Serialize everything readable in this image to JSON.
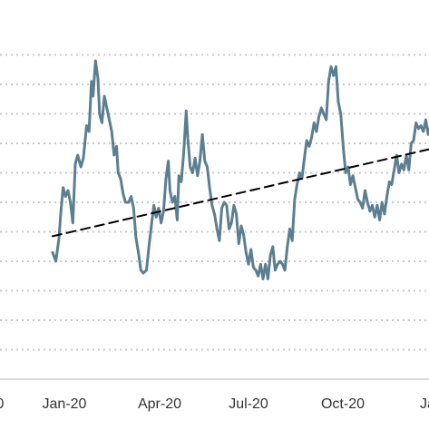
{
  "chart_data": {
    "type": "line",
    "title": "",
    "xlabel": "",
    "ylabel": "",
    "x_ticks": [
      "0",
      "Jan-20",
      "Apr-20",
      "Jul-20",
      "Oct-20",
      "Jan"
    ],
    "x_domain": [
      -65,
      465
    ],
    "y_domain": [
      0,
      12
    ],
    "grid": "horizontal dotted",
    "n_gridlines": 11,
    "series": [
      {
        "style": "solid",
        "color": "#5b7f91",
        "points": [
          [
            0,
            4.3
          ],
          [
            4,
            4.0
          ],
          [
            8,
            4.8
          ],
          [
            10,
            5.6
          ],
          [
            13,
            6.5
          ],
          [
            16,
            6.2
          ],
          [
            19,
            6.4
          ],
          [
            22,
            6.0
          ],
          [
            25,
            5.3
          ],
          [
            28,
            7.3
          ],
          [
            31,
            7.6
          ],
          [
            35,
            7.2
          ],
          [
            38,
            7.5
          ],
          [
            42,
            8.6
          ],
          [
            45,
            8.4
          ],
          [
            48,
            10.1
          ],
          [
            50,
            9.6
          ],
          [
            53,
            10.8
          ],
          [
            56,
            10.2
          ],
          [
            58,
            9.0
          ],
          [
            61,
            8.7
          ],
          [
            64,
            9.6
          ],
          [
            67,
            9.2
          ],
          [
            70,
            8.8
          ],
          [
            73,
            8.4
          ],
          [
            76,
            7.6
          ],
          [
            79,
            7.9
          ],
          [
            81,
            7.0
          ],
          [
            84,
            6.8
          ],
          [
            87,
            6.3
          ],
          [
            90,
            6.0
          ],
          [
            94,
            6.0
          ],
          [
            97,
            6.2
          ],
          [
            100,
            5.8
          ],
          [
            103,
            4.8
          ],
          [
            106,
            4.3
          ],
          [
            109,
            3.7
          ],
          [
            112,
            3.6
          ],
          [
            116,
            3.7
          ],
          [
            119,
            4.5
          ],
          [
            122,
            5.2
          ],
          [
            125,
            5.9
          ],
          [
            128,
            5.5
          ],
          [
            131,
            5.8
          ],
          [
            134,
            5.3
          ],
          [
            137,
            5.7
          ],
          [
            140,
            6.8
          ],
          [
            143,
            7.4
          ],
          [
            145,
            6.4
          ],
          [
            148,
            6.0
          ],
          [
            151,
            6.2
          ],
          [
            154,
            5.4
          ],
          [
            156,
            6.9
          ],
          [
            159,
            6.7
          ],
          [
            162,
            7.7
          ],
          [
            165,
            9.1
          ],
          [
            167,
            8.2
          ],
          [
            170,
            7.2
          ],
          [
            173,
            7.0
          ],
          [
            176,
            7.5
          ],
          [
            179,
            6.9
          ],
          [
            182,
            7.4
          ],
          [
            185,
            8.3
          ],
          [
            188,
            7.4
          ],
          [
            191,
            7.2
          ],
          [
            194,
            6.5
          ],
          [
            197,
            5.9
          ],
          [
            200,
            5.6
          ],
          [
            203,
            5.1
          ],
          [
            206,
            4.7
          ],
          [
            209,
            5.8
          ],
          [
            212,
            6.0
          ],
          [
            215,
            5.9
          ],
          [
            218,
            5.1
          ],
          [
            221,
            5.3
          ],
          [
            224,
            5.9
          ],
          [
            227,
            5.6
          ],
          [
            230,
            4.6
          ],
          [
            233,
            5.2
          ],
          [
            236,
            4.9
          ],
          [
            239,
            4.3
          ],
          [
            242,
            3.9
          ],
          [
            245,
            4.4
          ],
          [
            248,
            3.8
          ],
          [
            251,
            3.7
          ],
          [
            254,
            3.5
          ],
          [
            257,
            3.9
          ],
          [
            260,
            3.4
          ],
          [
            263,
            3.9
          ],
          [
            266,
            3.4
          ],
          [
            269,
            4.2
          ],
          [
            272,
            4.5
          ],
          [
            275,
            3.7
          ],
          [
            278,
            3.9
          ],
          [
            281,
            4.0
          ],
          [
            284,
            3.9
          ],
          [
            287,
            3.7
          ],
          [
            290,
            4.5
          ],
          [
            293,
            5.1
          ],
          [
            296,
            4.7
          ],
          [
            299,
            6.1
          ],
          [
            302,
            6.6
          ],
          [
            305,
            7.0
          ],
          [
            308,
            6.8
          ],
          [
            311,
            7.5
          ],
          [
            314,
            8.1
          ],
          [
            317,
            7.9
          ],
          [
            320,
            8.2
          ],
          [
            323,
            8.7
          ],
          [
            326,
            8.4
          ],
          [
            329,
            8.9
          ],
          [
            332,
            9.2
          ],
          [
            335,
            9.0
          ],
          [
            338,
            8.8
          ],
          [
            341,
            10.1
          ],
          [
            344,
            10.6
          ],
          [
            347,
            10.3
          ],
          [
            350,
            10.6
          ],
          [
            353,
            9.4
          ],
          [
            356,
            9.0
          ],
          [
            359,
            7.9
          ],
          [
            362,
            7.0
          ],
          [
            365,
            7.2
          ],
          [
            368,
            6.6
          ],
          [
            371,
            6.9
          ],
          [
            374,
            6.5
          ],
          [
            377,
            6.1
          ],
          [
            380,
            6.0
          ],
          [
            383,
            5.8
          ],
          [
            386,
            6.4
          ],
          [
            389,
            6.0
          ],
          [
            392,
            5.7
          ],
          [
            395,
            5.9
          ],
          [
            398,
            5.5
          ],
          [
            401,
            5.9
          ],
          [
            404,
            5.4
          ],
          [
            407,
            6.0
          ],
          [
            410,
            5.6
          ],
          [
            413,
            6.2
          ],
          [
            416,
            6.7
          ],
          [
            419,
            6.6
          ],
          [
            422,
            7.1
          ],
          [
            425,
            7.6
          ],
          [
            428,
            7.0
          ],
          [
            431,
            7.3
          ],
          [
            434,
            7.1
          ],
          [
            437,
            7.6
          ],
          [
            440,
            7.1
          ],
          [
            443,
            8.0
          ],
          [
            446,
            8.1
          ],
          [
            449,
            8.7
          ],
          [
            452,
            8.5
          ],
          [
            455,
            8.6
          ],
          [
            458,
            8.4
          ],
          [
            461,
            8.8
          ],
          [
            464,
            8.3
          ],
          [
            467,
            8.6
          ],
          [
            470,
            8.0
          ],
          [
            473,
            7.7
          ]
        ]
      },
      {
        "style": "dashed",
        "color": "#000000",
        "points": [
          [
            0,
            4.85
          ],
          [
            473,
            7.85
          ]
        ]
      }
    ]
  }
}
